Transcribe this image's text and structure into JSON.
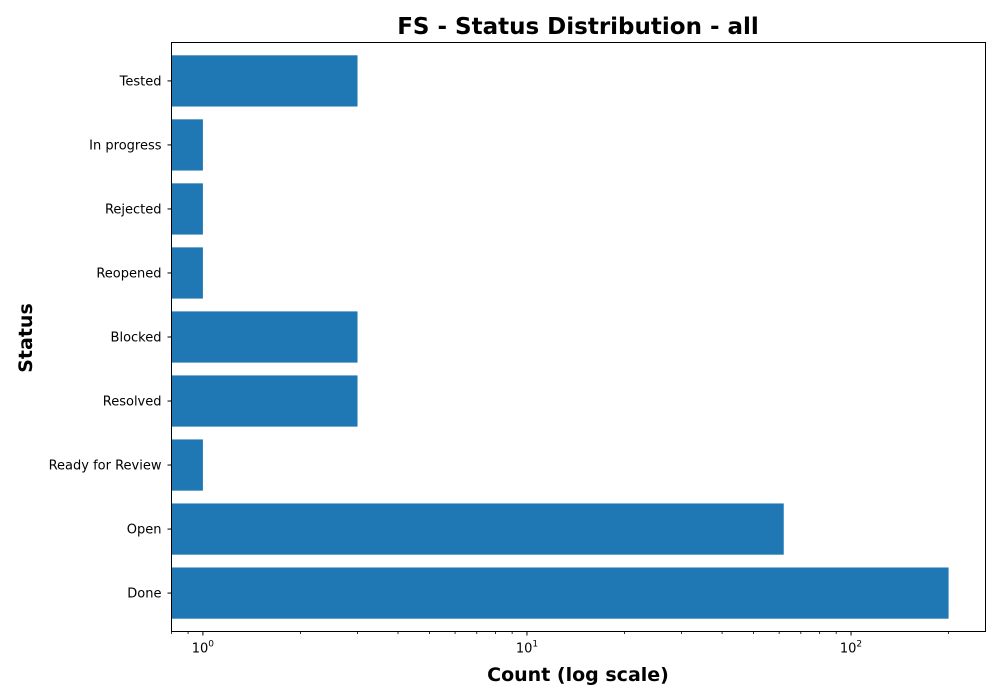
{
  "chart_data": {
    "type": "bar",
    "orientation": "horizontal",
    "title": "FS - Status Distribution - all",
    "xlabel": "Count (log scale)",
    "ylabel": "Status",
    "x_scale": "log",
    "xlim": [
      0.8,
      260
    ],
    "x_ticks": [
      {
        "value": 1,
        "base": "10",
        "exp": "0"
      },
      {
        "value": 10,
        "base": "10",
        "exp": "1"
      },
      {
        "value": 100,
        "base": "10",
        "exp": "2"
      }
    ],
    "categories": [
      "Done",
      "Open",
      "Ready for Review",
      "Resolved",
      "Blocked",
      "Reopened",
      "Rejected",
      "In progress",
      "Tested"
    ],
    "values": [
      200,
      62,
      1,
      3,
      3,
      1,
      1,
      1,
      3
    ],
    "bar_color": "#1f77b4",
    "grid": false,
    "legend": "none"
  }
}
